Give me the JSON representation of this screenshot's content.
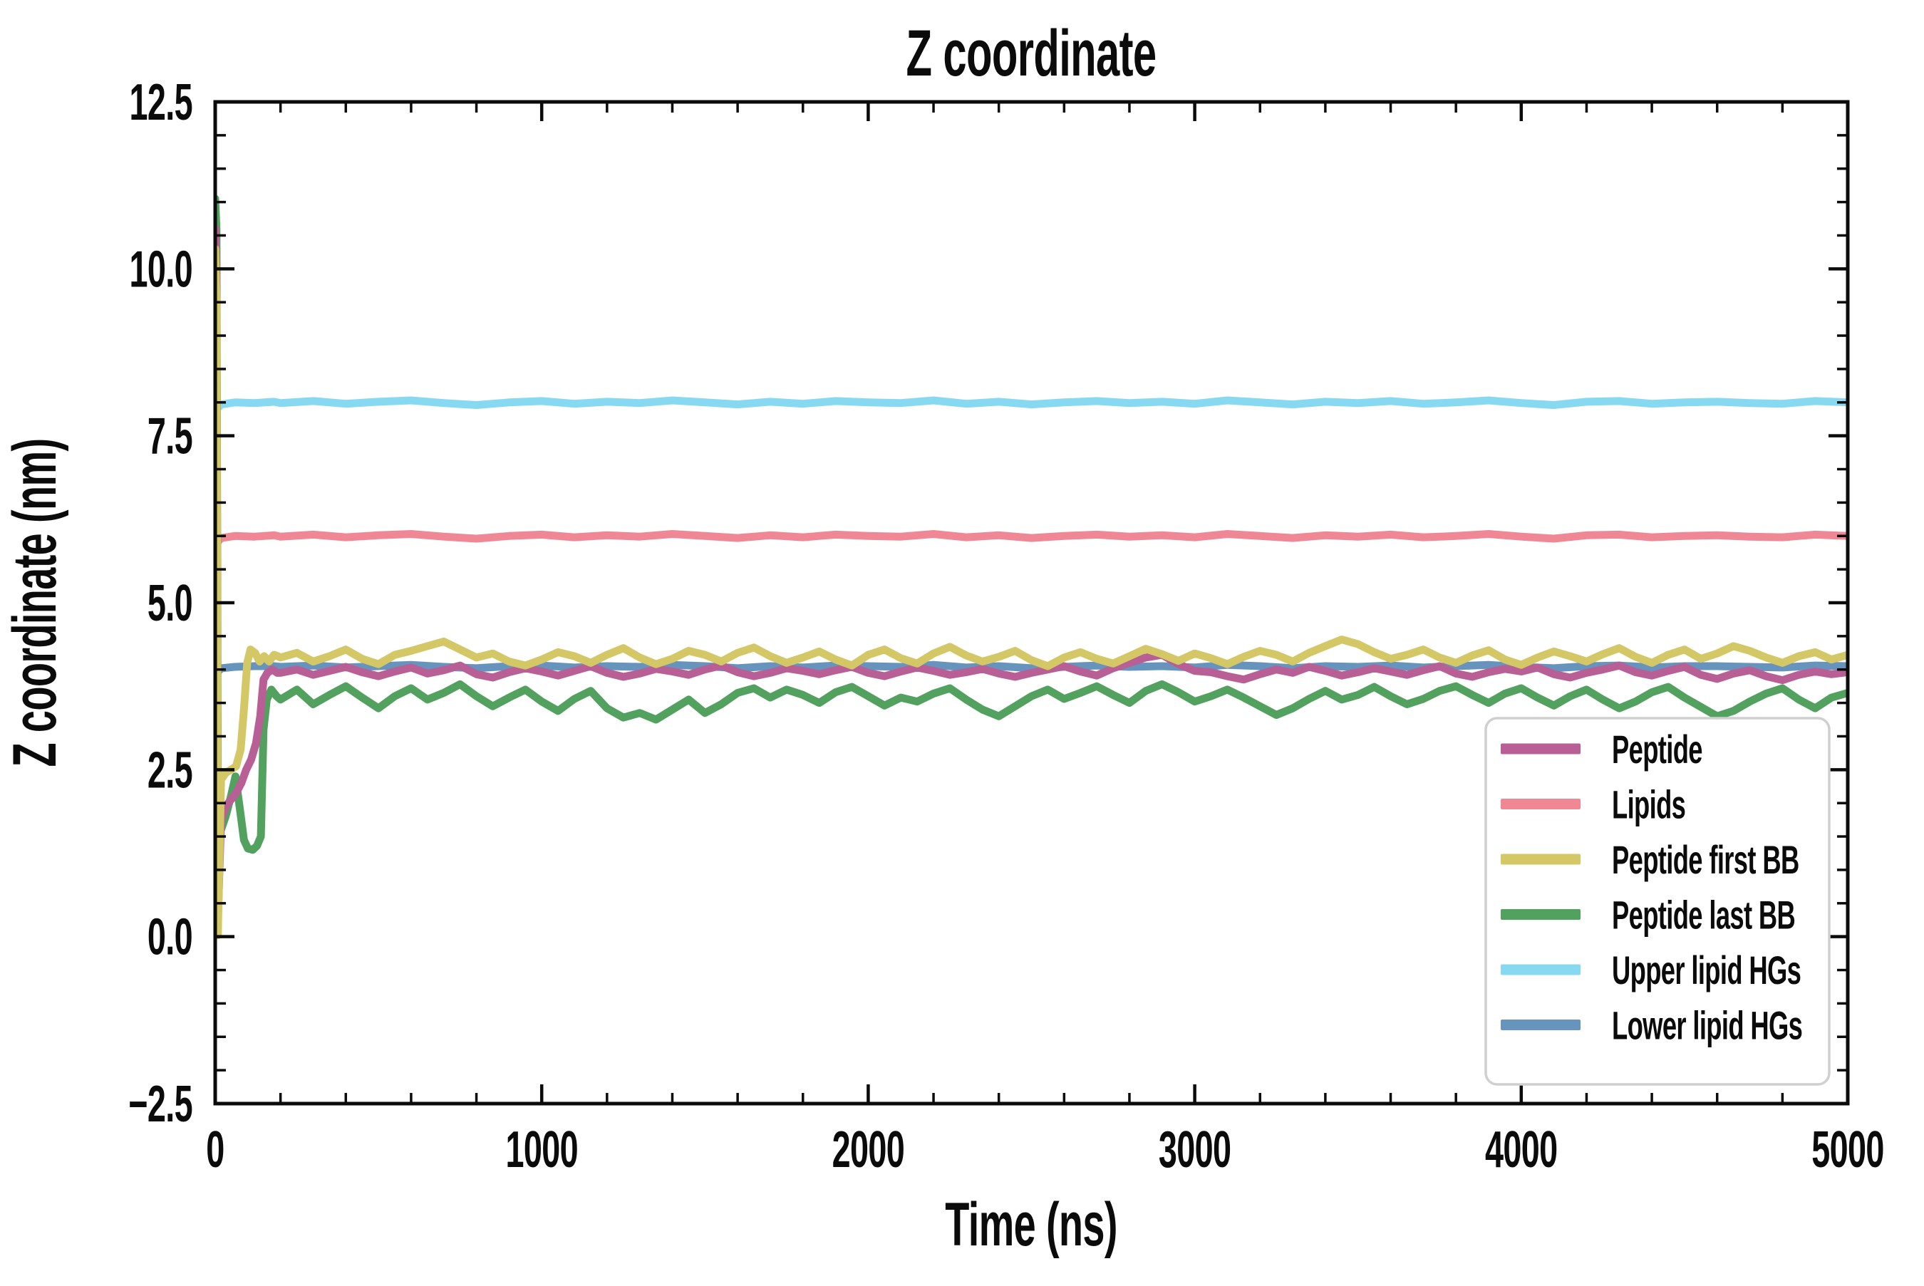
{
  "chart_data": {
    "type": "line",
    "title": "Z coordinate",
    "xlabel": "Time (ns)",
    "ylabel": "Z coordinate (nm)",
    "xlim": [
      0,
      5000
    ],
    "ylim": [
      -2.5,
      12.5
    ],
    "grid": false,
    "legend_position": "lower right",
    "tick_style": "in, all four sides",
    "x_ticks": [
      {
        "v": 0,
        "label": "0"
      },
      {
        "v": 1000,
        "label": "1000"
      },
      {
        "v": 2000,
        "label": "2000"
      },
      {
        "v": 3000,
        "label": "3000"
      },
      {
        "v": 4000,
        "label": "4000"
      },
      {
        "v": 5000,
        "label": "5000"
      }
    ],
    "x_minor_step": 200,
    "y_ticks": [
      {
        "v": -2.5,
        "label": "−2.5"
      },
      {
        "v": 0,
        "label": "0.0"
      },
      {
        "v": 2.5,
        "label": "2.5"
      },
      {
        "v": 5,
        "label": "5.0"
      },
      {
        "v": 7.5,
        "label": "7.5"
      },
      {
        "v": 10,
        "label": "10.0"
      },
      {
        "v": 12.5,
        "label": "12.5"
      }
    ],
    "y_minor_step": 0.5,
    "draw_order": [
      1,
      4,
      5,
      3,
      0,
      2
    ],
    "series": [
      {
        "name": "Peptide",
        "color": "#b85f95",
        "pre": [
          [
            0,
            10.6
          ],
          [
            4,
            9.8
          ],
          [
            8,
            0.25
          ],
          [
            18,
            1.75
          ],
          [
            32,
            1.95
          ],
          [
            48,
            2.05
          ],
          [
            64,
            2.15
          ],
          [
            80,
            2.3
          ],
          [
            95,
            2.5
          ],
          [
            110,
            2.65
          ],
          [
            125,
            2.9
          ],
          [
            138,
            3.3
          ],
          [
            148,
            3.85
          ],
          [
            160,
            3.95
          ],
          [
            175,
            4.0
          ],
          [
            190,
            3.95
          ]
        ],
        "x0": 200,
        "dx": 50,
        "values": [
          3.95,
          4.0,
          3.92,
          3.98,
          4.04,
          3.96,
          3.9,
          3.97,
          4.03,
          3.94,
          3.99,
          4.06,
          3.93,
          3.88,
          3.96,
          4.02,
          3.97,
          3.91,
          3.98,
          4.05,
          3.95,
          3.89,
          3.94,
          4.01,
          3.97,
          3.92,
          4.0,
          4.06,
          3.96,
          3.9,
          3.95,
          4.02,
          3.98,
          3.93,
          3.99,
          4.04,
          3.95,
          3.9,
          3.97,
          4.03,
          3.98,
          3.92,
          3.96,
          4.01,
          3.94,
          3.89,
          3.95,
          4.0,
          4.05,
          3.97,
          3.91,
          4.02,
          4.1,
          4.18,
          4.22,
          4.08,
          3.98,
          3.96,
          3.9,
          3.85,
          3.93,
          4.0,
          3.95,
          4.04,
          3.98,
          3.91,
          3.96,
          4.02,
          3.97,
          3.92,
          3.99,
          4.05,
          3.94,
          3.89,
          3.96,
          4.01,
          3.97,
          4.03,
          3.93,
          3.88,
          3.95,
          4.0,
          4.06,
          3.96,
          3.91,
          3.98,
          4.04,
          3.92,
          3.86,
          3.94,
          3.99,
          3.9,
          3.84,
          3.92,
          3.97,
          3.93,
          3.96
        ]
      },
      {
        "name": "Lipids",
        "color": "#f08795",
        "pre": [
          [
            0,
            5.78
          ],
          [
            8,
            5.92
          ],
          [
            20,
            5.97
          ],
          [
            60,
            6.0
          ],
          [
            120,
            5.99
          ],
          [
            180,
            6.01
          ]
        ],
        "x0": 200,
        "dx": 100,
        "values": [
          5.99,
          6.02,
          5.98,
          6.01,
          6.03,
          5.99,
          5.96,
          6.0,
          6.02,
          5.98,
          6.01,
          5.99,
          6.03,
          6.0,
          5.97,
          6.01,
          5.98,
          6.02,
          6.0,
          5.99,
          6.03,
          5.98,
          6.01,
          5.97,
          6.0,
          6.02,
          5.99,
          6.01,
          5.98,
          6.03,
          6.0,
          5.97,
          6.01,
          5.99,
          6.02,
          5.98,
          6.0,
          6.03,
          5.99,
          5.96,
          6.01,
          6.02,
          5.98,
          6.0,
          6.01,
          5.99,
          5.98,
          6.02,
          6.0
        ]
      },
      {
        "name": "Peptide first BB",
        "color": "#d4c766",
        "pre": [
          [
            0,
            10.3
          ],
          [
            4,
            9.5
          ],
          [
            8,
            0.02
          ],
          [
            18,
            2.35
          ],
          [
            32,
            2.45
          ],
          [
            48,
            2.5
          ],
          [
            64,
            2.55
          ],
          [
            78,
            2.8
          ],
          [
            88,
            3.4
          ],
          [
            98,
            4.1
          ],
          [
            108,
            4.3
          ],
          [
            122,
            4.25
          ],
          [
            136,
            4.12
          ],
          [
            150,
            4.2
          ],
          [
            165,
            4.12
          ],
          [
            180,
            4.22
          ],
          [
            192,
            4.2
          ]
        ],
        "x0": 200,
        "dx": 50,
        "values": [
          4.18,
          4.25,
          4.12,
          4.2,
          4.3,
          4.16,
          4.08,
          4.22,
          4.28,
          4.35,
          4.42,
          4.3,
          4.18,
          4.24,
          4.12,
          4.06,
          4.15,
          4.26,
          4.2,
          4.1,
          4.22,
          4.32,
          4.18,
          4.08,
          4.16,
          4.28,
          4.22,
          4.12,
          4.25,
          4.33,
          4.2,
          4.1,
          4.18,
          4.27,
          4.15,
          4.06,
          4.22,
          4.3,
          4.17,
          4.09,
          4.24,
          4.34,
          4.21,
          4.12,
          4.19,
          4.28,
          4.14,
          4.05,
          4.18,
          4.26,
          4.16,
          4.09,
          4.2,
          4.31,
          4.23,
          4.13,
          4.24,
          4.17,
          4.08,
          4.19,
          4.28,
          4.22,
          4.12,
          4.25,
          4.35,
          4.45,
          4.38,
          4.26,
          4.16,
          4.22,
          4.3,
          4.18,
          4.1,
          4.21,
          4.29,
          4.15,
          4.07,
          4.18,
          4.27,
          4.2,
          4.12,
          4.23,
          4.32,
          4.19,
          4.1,
          4.22,
          4.3,
          4.16,
          4.24,
          4.35,
          4.28,
          4.18,
          4.1,
          4.2,
          4.26,
          4.15,
          4.22
        ]
      },
      {
        "name": "Peptide last BB",
        "color": "#52a15e",
        "pre": [
          [
            0,
            11.05
          ],
          [
            4,
            10.6
          ],
          [
            8,
            1.9
          ],
          [
            18,
            1.6
          ],
          [
            32,
            1.8
          ],
          [
            48,
            2.1
          ],
          [
            62,
            2.4
          ],
          [
            76,
            1.9
          ],
          [
            88,
            1.45
          ],
          [
            100,
            1.32
          ],
          [
            115,
            1.3
          ],
          [
            128,
            1.36
          ],
          [
            140,
            1.5
          ],
          [
            148,
            3.1
          ],
          [
            158,
            3.55
          ],
          [
            172,
            3.7
          ],
          [
            188,
            3.6
          ]
        ],
        "x0": 200,
        "dx": 50,
        "values": [
          3.55,
          3.7,
          3.48,
          3.62,
          3.75,
          3.58,
          3.42,
          3.6,
          3.72,
          3.55,
          3.65,
          3.78,
          3.6,
          3.45,
          3.58,
          3.7,
          3.52,
          3.38,
          3.56,
          3.68,
          3.42,
          3.28,
          3.35,
          3.25,
          3.4,
          3.55,
          3.35,
          3.48,
          3.65,
          3.72,
          3.58,
          3.7,
          3.62,
          3.5,
          3.66,
          3.74,
          3.6,
          3.46,
          3.58,
          3.52,
          3.64,
          3.72,
          3.55,
          3.4,
          3.3,
          3.45,
          3.6,
          3.7,
          3.56,
          3.65,
          3.75,
          3.62,
          3.5,
          3.68,
          3.78,
          3.66,
          3.52,
          3.6,
          3.7,
          3.58,
          3.45,
          3.32,
          3.42,
          3.56,
          3.68,
          3.55,
          3.62,
          3.74,
          3.6,
          3.48,
          3.56,
          3.68,
          3.75,
          3.62,
          3.5,
          3.64,
          3.72,
          3.58,
          3.46,
          3.6,
          3.7,
          3.55,
          3.42,
          3.52,
          3.66,
          3.74,
          3.58,
          3.44,
          3.3,
          3.38,
          3.52,
          3.64,
          3.72,
          3.55,
          3.42,
          3.58,
          3.65
        ]
      },
      {
        "name": "Upper lipid HGs",
        "color": "#87d9f2",
        "pre": [
          [
            0,
            7.8
          ],
          [
            8,
            7.92
          ],
          [
            20,
            7.97
          ],
          [
            60,
            8.0
          ],
          [
            120,
            7.99
          ],
          [
            180,
            8.01
          ]
        ],
        "x0": 200,
        "dx": 100,
        "values": [
          7.99,
          8.02,
          7.98,
          8.01,
          8.03,
          7.99,
          7.96,
          8.0,
          8.02,
          7.98,
          8.01,
          7.99,
          8.03,
          8.0,
          7.97,
          8.01,
          7.98,
          8.02,
          8.0,
          7.99,
          8.03,
          7.98,
          8.01,
          7.97,
          8.0,
          8.02,
          7.99,
          8.01,
          7.98,
          8.03,
          8.0,
          7.97,
          8.01,
          7.99,
          8.02,
          7.98,
          8.0,
          8.03,
          7.99,
          7.96,
          8.01,
          8.02,
          7.98,
          8.0,
          8.01,
          7.99,
          7.98,
          8.02,
          8.0
        ]
      },
      {
        "name": "Lower lipid HGs",
        "color": "#6794bd",
        "pre": [
          [
            0,
            3.88
          ],
          [
            8,
            3.97
          ],
          [
            20,
            4.02
          ],
          [
            60,
            4.04
          ],
          [
            120,
            4.05
          ],
          [
            180,
            4.05
          ]
        ],
        "x0": 200,
        "dx": 100,
        "values": [
          4.04,
          4.06,
          4.03,
          4.05,
          4.07,
          4.04,
          4.02,
          4.05,
          4.06,
          4.03,
          4.05,
          4.04,
          4.07,
          4.05,
          4.02,
          4.05,
          4.03,
          4.06,
          4.05,
          4.04,
          4.07,
          4.03,
          4.05,
          4.02,
          4.04,
          4.06,
          4.04,
          4.05,
          4.03,
          4.07,
          4.05,
          4.02,
          4.05,
          4.04,
          4.06,
          4.03,
          4.05,
          4.07,
          4.04,
          4.02,
          4.05,
          4.06,
          4.03,
          4.05,
          4.05,
          4.04,
          4.03,
          4.06,
          4.05
        ]
      }
    ],
    "colors": {
      "axes": "#0b0b0b",
      "background": "#ffffff",
      "legend_edge": "#cfcfcf",
      "legend_fill": "#ffffff"
    }
  }
}
